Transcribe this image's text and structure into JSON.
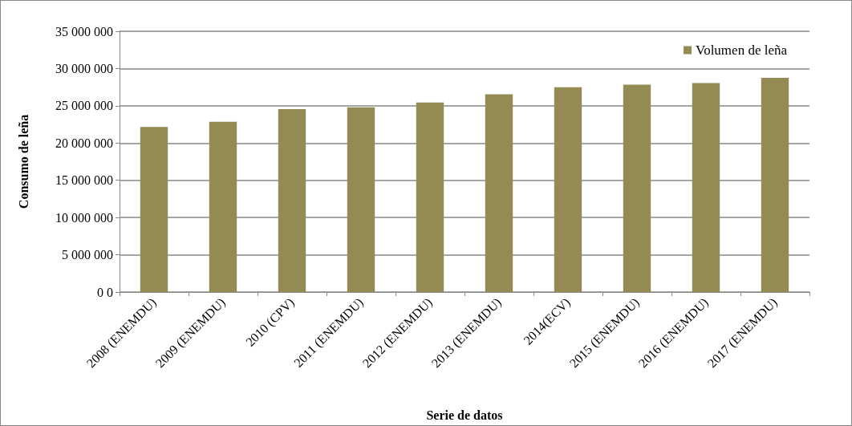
{
  "chart_data": {
    "type": "bar",
    "xlabel": "Serie de datos",
    "ylabel": "Consumo de leña",
    "categories": [
      "2008 (ENEMDU)",
      "2009 (ENEMDU)",
      "2010 (CPV)",
      "2011 (ENEMDU)",
      "2012 (ENEMDU)",
      "2013 (ENEMDU)",
      "2014(ECV)",
      "2015 (ENEMDU)",
      "2016 (ENEMDU)",
      "2017 (ENEMDU)"
    ],
    "series": [
      {
        "name": "Volumen de leña",
        "color": "#948a54",
        "values": [
          22150000,
          22850000,
          24550000,
          24800000,
          25450000,
          26550000,
          27500000,
          27850000,
          28050000,
          28750000
        ]
      }
    ],
    "ylim": [
      0,
      35000000
    ],
    "yticks": [
      {
        "value": 0,
        "label": "0 0"
      },
      {
        "value": 5000000,
        "label": "5 000 000"
      },
      {
        "value": 10000000,
        "label": "10 000 000"
      },
      {
        "value": 15000000,
        "label": "15 000 000"
      },
      {
        "value": 20000000,
        "label": "20 000 000"
      },
      {
        "value": 25000000,
        "label": "25 000 000"
      },
      {
        "value": 30000000,
        "label": "30 000 000"
      },
      {
        "value": 35000000,
        "label": "35 000 000"
      }
    ],
    "grid": "y",
    "legend": "top right"
  }
}
